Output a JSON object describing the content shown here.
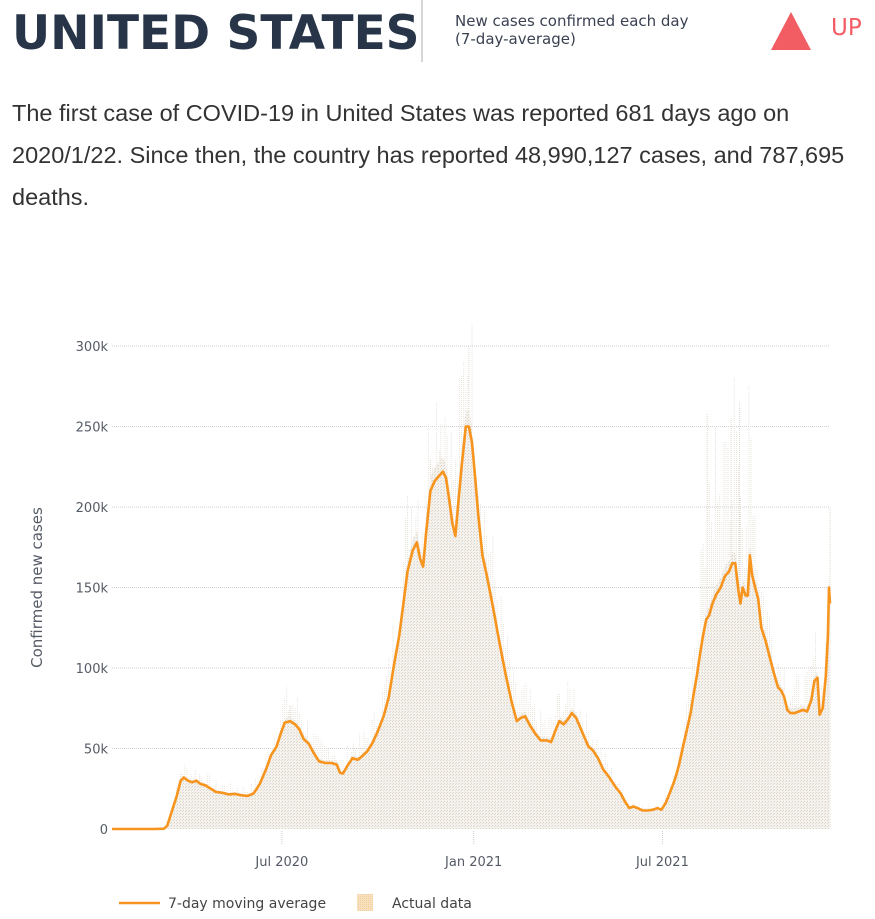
{
  "header": {
    "country": "UNITED STATES",
    "subtitle_line1": "New cases confirmed each day",
    "subtitle_line2": "(7-day-average)",
    "trend_icon": "triangle-up-icon",
    "trend_label": "UP",
    "trend_color": "#f25c63"
  },
  "summary": {
    "text": "The first case of COVID-19 in United States was reported 681 days ago on 2020/1/22. Since then, the country has reported 48,990,127 cases, and 787,695 deaths."
  },
  "chart_data": {
    "type": "line",
    "title": "",
    "xlabel": "",
    "ylabel": "Confirmed new cases",
    "ylim": [
      0,
      300000
    ],
    "yticks": [
      0,
      50000,
      100000,
      150000,
      200000,
      250000,
      300000
    ],
    "ytick_labels": [
      "0",
      "50k",
      "100k",
      "150k",
      "200k",
      "250k",
      "300k"
    ],
    "xlim_days": [
      0,
      681
    ],
    "x_start_date": "2020-01-22",
    "xticks": [
      {
        "label": "Jul 2020",
        "day": 161
      },
      {
        "label": "Jan 2021",
        "day": 345
      },
      {
        "label": "Jul 2021",
        "day": 526
      }
    ],
    "grid": true,
    "legend": {
      "placement": "bottom-left",
      "entries": [
        {
          "label": "7-day moving average",
          "type": "line",
          "color": "#f7941d"
        },
        {
          "label": "Actual data",
          "type": "area",
          "color": "#f5d9b0"
        }
      ]
    },
    "colors": {
      "line": "#f7941d",
      "area": "#ece8e2",
      "grid": "#d0d0d0"
    },
    "series": [
      {
        "name": "7-day moving average",
        "points": [
          [
            0,
            0
          ],
          [
            20,
            0
          ],
          [
            40,
            0
          ],
          [
            50,
            200
          ],
          [
            53,
            2000
          ],
          [
            57,
            10000
          ],
          [
            62,
            20000
          ],
          [
            66,
            30000
          ],
          [
            69,
            32000
          ],
          [
            73,
            30000
          ],
          [
            77,
            29000
          ],
          [
            81,
            30000
          ],
          [
            85,
            28000
          ],
          [
            90,
            27000
          ],
          [
            95,
            25000
          ],
          [
            100,
            23000
          ],
          [
            106,
            22500
          ],
          [
            112,
            21500
          ],
          [
            118,
            21800
          ],
          [
            124,
            21000
          ],
          [
            130,
            20500
          ],
          [
            136,
            22000
          ],
          [
            142,
            28000
          ],
          [
            148,
            37000
          ],
          [
            153,
            46000
          ],
          [
            158,
            51000
          ],
          [
            162,
            59000
          ],
          [
            166,
            66000
          ],
          [
            171,
            67000
          ],
          [
            176,
            65000
          ],
          [
            180,
            62000
          ],
          [
            184,
            56000
          ],
          [
            189,
            53000
          ],
          [
            194,
            47000
          ],
          [
            199,
            42000
          ],
          [
            205,
            41000
          ],
          [
            211,
            41000
          ],
          [
            216,
            40000
          ],
          [
            219,
            35000
          ],
          [
            222,
            34500
          ],
          [
            226,
            39000
          ],
          [
            231,
            44000
          ],
          [
            236,
            43000
          ],
          [
            240,
            45000
          ],
          [
            245,
            48000
          ],
          [
            250,
            53000
          ],
          [
            255,
            60000
          ],
          [
            261,
            70000
          ],
          [
            266,
            82000
          ],
          [
            271,
            102000
          ],
          [
            276,
            120000
          ],
          [
            280,
            140000
          ],
          [
            284,
            160000
          ],
          [
            289,
            173000
          ],
          [
            293,
            178000
          ],
          [
            296,
            168000
          ],
          [
            299,
            163000
          ],
          [
            302,
            185000
          ],
          [
            306,
            210000
          ],
          [
            310,
            216000
          ],
          [
            314,
            219000
          ],
          [
            318,
            222000
          ],
          [
            321,
            218000
          ],
          [
            324,
            205000
          ],
          [
            327,
            190000
          ],
          [
            330,
            182000
          ],
          [
            333,
            204000
          ],
          [
            336,
            225000
          ],
          [
            340,
            250000
          ],
          [
            343,
            250000
          ],
          [
            346,
            240000
          ],
          [
            349,
            218000
          ],
          [
            352,
            195000
          ],
          [
            356,
            170000
          ],
          [
            360,
            158000
          ],
          [
            366,
            138000
          ],
          [
            372,
            117000
          ],
          [
            378,
            97000
          ],
          [
            384,
            79000
          ],
          [
            389,
            67000
          ],
          [
            393,
            69000
          ],
          [
            397,
            70000
          ],
          [
            402,
            64000
          ],
          [
            407,
            59000
          ],
          [
            412,
            55000
          ],
          [
            418,
            55000
          ],
          [
            422,
            54000
          ],
          [
            426,
            61000
          ],
          [
            430,
            67000
          ],
          [
            434,
            65000
          ],
          [
            438,
            68000
          ],
          [
            442,
            72000
          ],
          [
            446,
            69000
          ],
          [
            450,
            63000
          ],
          [
            454,
            57000
          ],
          [
            458,
            51000
          ],
          [
            462,
            49000
          ],
          [
            467,
            44000
          ],
          [
            472,
            37000
          ],
          [
            478,
            32000
          ],
          [
            484,
            26000
          ],
          [
            489,
            22000
          ],
          [
            493,
            17000
          ],
          [
            497,
            13000
          ],
          [
            501,
            14000
          ],
          [
            505,
            13000
          ],
          [
            510,
            11500
          ],
          [
            515,
            11500
          ],
          [
            520,
            12000
          ],
          [
            524,
            13000
          ],
          [
            528,
            12000
          ],
          [
            532,
            16000
          ],
          [
            537,
            24000
          ],
          [
            541,
            31000
          ],
          [
            545,
            40000
          ],
          [
            549,
            52000
          ],
          [
            553,
            63000
          ],
          [
            556,
            72000
          ],
          [
            559,
            84000
          ],
          [
            562,
            95000
          ],
          [
            565,
            108000
          ],
          [
            568,
            120000
          ],
          [
            571,
            130000
          ],
          [
            574,
            133000
          ],
          [
            577,
            140000
          ],
          [
            581,
            146000
          ],
          [
            585,
            150000
          ],
          [
            589,
            157000
          ],
          [
            593,
            160000
          ],
          [
            596,
            165000
          ],
          [
            599,
            165000
          ],
          [
            602,
            148000
          ],
          [
            604,
            140000
          ],
          [
            606,
            150000
          ],
          [
            609,
            145000
          ],
          [
            611,
            145000
          ],
          [
            613,
            170000
          ],
          [
            615,
            158000
          ],
          [
            618,
            150000
          ],
          [
            621,
            143000
          ],
          [
            624,
            125000
          ],
          [
            628,
            117000
          ],
          [
            632,
            107000
          ],
          [
            636,
            97000
          ],
          [
            640,
            88000
          ],
          [
            643,
            86000
          ],
          [
            646,
            82000
          ],
          [
            649,
            74000
          ],
          [
            652,
            72000
          ],
          [
            656,
            72000
          ],
          [
            660,
            73000
          ],
          [
            664,
            74000
          ],
          [
            668,
            73000
          ],
          [
            672,
            80000
          ],
          [
            675,
            92000
          ],
          [
            678,
            94000
          ],
          [
            680,
            71000
          ],
          [
            683,
            75000
          ],
          [
            686,
            95000
          ],
          [
            688,
            120000
          ],
          [
            689,
            150000
          ],
          [
            690,
            140000
          ]
        ]
      },
      {
        "name": "Actual data",
        "note": "daily reported values shown as a light shaded area/spikes around the 7-day average",
        "spike_peaks": [
          [
            66,
            35000
          ],
          [
            171,
            77000
          ],
          [
            306,
            230000
          ],
          [
            315,
            235000
          ],
          [
            340,
            258000
          ],
          [
            343,
            300000
          ],
          [
            572,
            258000
          ],
          [
            595,
            255000
          ],
          [
            603,
            265000
          ],
          [
            690,
            200000
          ]
        ]
      }
    ]
  }
}
